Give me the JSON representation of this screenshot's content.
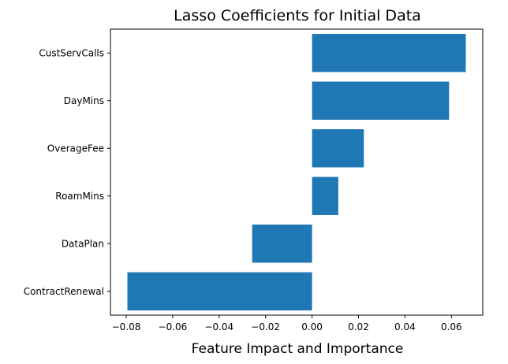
{
  "chart_data": {
    "type": "bar",
    "orientation": "horizontal",
    "title": "Lasso Coefficients for Initial Data",
    "xlabel": "Feature Impact and Importance",
    "ylabel": "",
    "categories": [
      "ContractRenewal",
      "DataPlan",
      "RoamMins",
      "OverageFee",
      "DayMins",
      "CustServCalls"
    ],
    "values": [
      -0.0795,
      -0.0258,
      0.0113,
      0.0223,
      0.059,
      0.0662
    ],
    "xlim": [
      -0.0868,
      0.0735
    ],
    "xticks": [
      -0.08,
      -0.06,
      -0.04,
      -0.02,
      0.0,
      0.02,
      0.04,
      0.06
    ],
    "xtick_labels": [
      "−0.08",
      "−0.06",
      "−0.04",
      "−0.02",
      "0.00",
      "0.02",
      "0.04",
      "0.06"
    ],
    "grid": false,
    "bar_color": "#1f77b4"
  }
}
